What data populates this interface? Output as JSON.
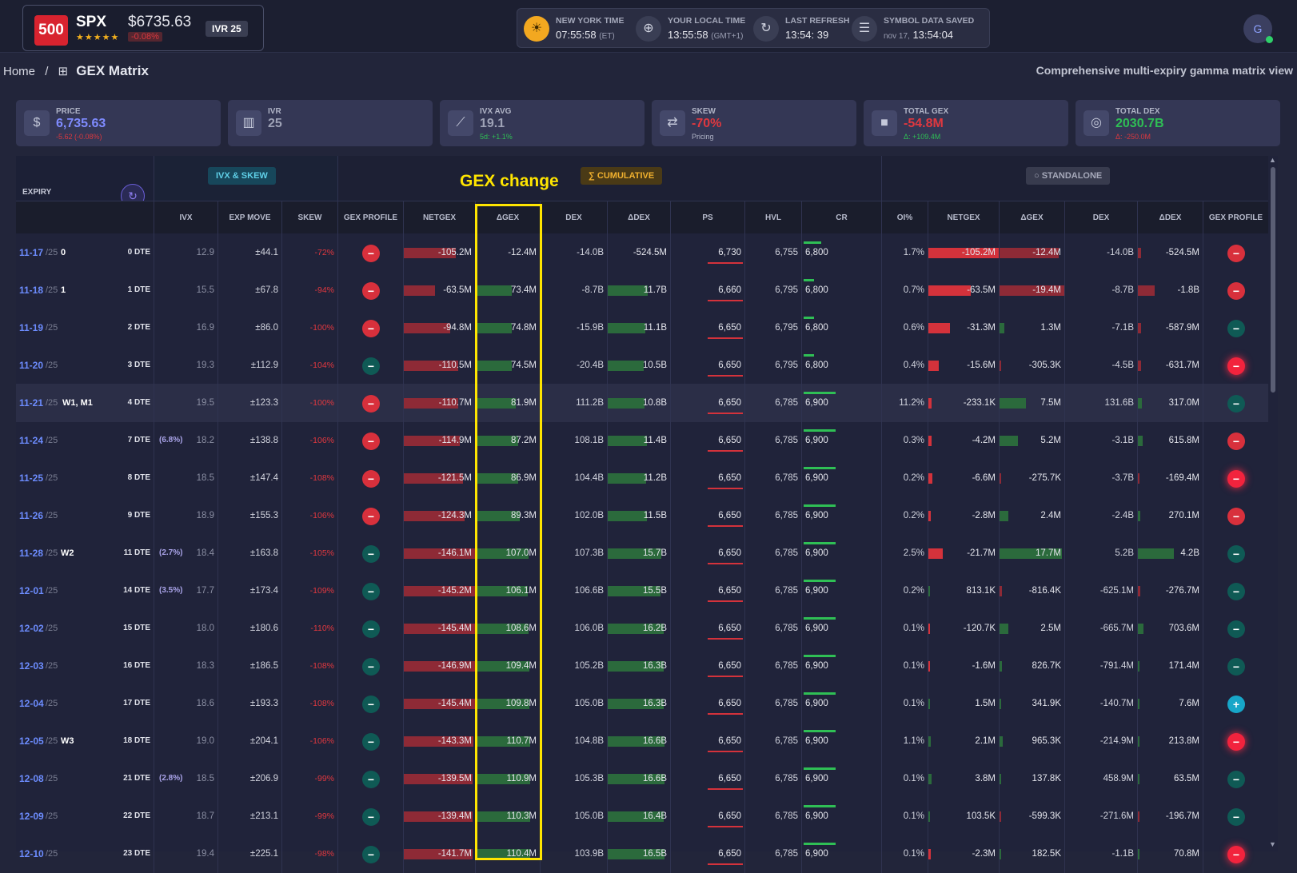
{
  "ticker": {
    "logo": "500",
    "symbol": "SPX",
    "stars": "★★★★★",
    "price": "$6735.63",
    "change": "-0.08%",
    "ivr_label": "IVR",
    "ivr": "25"
  },
  "clocks": [
    {
      "icon": "sun-icon",
      "glyph": "☀",
      "label": "NEW YORK TIME",
      "value": "07:55:58",
      "suffix": "(ET)"
    },
    {
      "icon": "globe-icon",
      "glyph": "⊕",
      "label": "YOUR LOCAL TIME",
      "value": "13:55:58",
      "suffix": "(GMT+1)"
    },
    {
      "icon": "refresh-icon",
      "glyph": "↻",
      "label": "LAST REFRESH",
      "value": "13:54:  39",
      "suffix": ""
    },
    {
      "icon": "database-icon",
      "glyph": "☰",
      "label": "SYMBOL DATA SAVED",
      "value": "13:54:04",
      "suffix": "nov 17,"
    }
  ],
  "avatar": "G",
  "breadcrumb": {
    "home": "Home",
    "sep": "/",
    "icon": "⊞",
    "page": "GEX Matrix"
  },
  "subtitle": "Comprehensive multi-expiry gamma matrix view",
  "kpis": [
    {
      "name": "price",
      "icon": "dollar-icon",
      "glyph": "$",
      "label": "PRICE",
      "value": "6,735.63",
      "sub": "-5.62 (-0.08%)",
      "color": "#7f8bff",
      "subcolor": "#d8383f"
    },
    {
      "name": "ivr",
      "icon": "bar-chart-icon",
      "glyph": "▥",
      "label": "IVR",
      "value": "25",
      "sub": "",
      "color": "#9ea2b6",
      "subcolor": "#9ea2b6"
    },
    {
      "name": "ivx-avg",
      "icon": "line-chart-icon",
      "glyph": "⟋",
      "label": "IVX AVG",
      "value": "19.1",
      "sub": "5d: +1.1%",
      "color": "#9ea2b6",
      "subcolor": "#2fbf55"
    },
    {
      "name": "skew",
      "icon": "swap-icon",
      "glyph": "⇄",
      "label": "SKEW",
      "value": "-70%",
      "sub": "Pricing",
      "color": "#e0383f",
      "subcolor": "#b0b4c6"
    },
    {
      "name": "total-gex",
      "icon": "square-icon",
      "glyph": "■",
      "label": "TOTAL GEX",
      "value": "-54.8M",
      "sub": "Δ: +109.4M",
      "color": "#e0383f",
      "subcolor": "#2fbf55"
    },
    {
      "name": "total-dex",
      "icon": "target-icon",
      "glyph": "◎",
      "label": "TOTAL DEX",
      "value": "2030.7B",
      "sub": "Δ: -250.0M",
      "color": "#2fbf55",
      "subcolor": "#d8383f"
    }
  ],
  "matrix": {
    "expiry_header": "EXPIRY",
    "ivx_group": "IVX & SKEW",
    "cumulative": "∑ CUMULATIVE",
    "standalone": "○ STANDALONE",
    "gex_change_label": "GEX change",
    "columns": [
      "IVX",
      "EXP MOVE",
      "SKEW",
      "GEX PROFILE",
      "NETGEX",
      "ΔGEX",
      "DEX",
      "ΔDEX",
      "PS",
      "HVL",
      "CR",
      "OI%",
      "NETGEX",
      "ΔGEX",
      "DEX",
      "ΔDEX",
      "GEX PROFILE"
    ],
    "rows": [
      {
        "date": "11-17",
        "yr": "/25",
        "tag": "0",
        "dte": "0 DTE",
        "wk": "",
        "ivx": "12.9",
        "move": "±44.1",
        "skew": "-72%",
        "gp": "neg",
        "netgex": "-105.2M",
        "ng": 0.72,
        "dgex": "-12.4M",
        "dg": 0,
        "dex": "-14.0B",
        "ddex": "-524.5M",
        "dd": 0,
        "ps": "6,730",
        "hvl": "6,755",
        "cr": "6,800",
        "crb": 0.5,
        "oi": "1.7%",
        "sng": "-105.2M",
        "sngb": 1.0,
        "sdg": "-12.4M",
        "sdgb": -0.9,
        "sdex": "-14.0B",
        "sdd": "-524.5M",
        "sddb": -0.05,
        "sgp": "neg"
      },
      {
        "date": "11-18",
        "yr": "/25",
        "tag": "1",
        "dte": "1 DTE",
        "wk": "",
        "ivx": "15.5",
        "move": "±67.8",
        "skew": "-94%",
        "gp": "neg",
        "netgex": "-63.5M",
        "ng": 0.43,
        "dgex": "73.4M",
        "dg": 0.55,
        "dex": "-8.7B",
        "ddex": "11.7B",
        "dd": 0.63,
        "ps": "6,660",
        "hvl": "6,795",
        "cr": "6,800",
        "crb": 0.3,
        "oi": "0.7%",
        "sng": "-63.5M",
        "sngb": 0.6,
        "sdg": "-19.4M",
        "sdgb": -1.0,
        "sdex": "-8.7B",
        "sdd": "-1.8B",
        "sddb": -0.25,
        "sgp": "neg"
      },
      {
        "date": "11-19",
        "yr": "/25",
        "tag": "",
        "dte": "2 DTE",
        "wk": "",
        "ivx": "16.9",
        "move": "±86.0",
        "skew": "-100%",
        "gp": "neg",
        "netgex": "-94.8M",
        "ng": 0.64,
        "dgex": "74.8M",
        "dg": 0.56,
        "dex": "-15.9B",
        "ddex": "11.1B",
        "dd": 0.6,
        "ps": "6,650",
        "hvl": "6,795",
        "cr": "6,800",
        "crb": 0.3,
        "oi": "0.6%",
        "sng": "-31.3M",
        "sngb": 0.3,
        "sdg": "1.3M",
        "sdgb": 0.07,
        "sdex": "-7.1B",
        "sdd": "-587.9M",
        "sddb": -0.05,
        "sgp": "pos"
      },
      {
        "date": "11-20",
        "yr": "/25",
        "tag": "",
        "dte": "3 DTE",
        "wk": "",
        "ivx": "19.3",
        "move": "±112.9",
        "skew": "-104%",
        "gp": "pos",
        "netgex": "-110.5M",
        "ng": 0.75,
        "dgex": "74.5M",
        "dg": 0.56,
        "dex": "-20.4B",
        "ddex": "10.5B",
        "dd": 0.57,
        "ps": "6,650",
        "hvl": "6,795",
        "cr": "6,800",
        "crb": 0.3,
        "oi": "0.4%",
        "sng": "-15.6M",
        "sngb": 0.15,
        "sdg": "-305.3K",
        "sdgb": -0.02,
        "sdex": "-4.5B",
        "sdd": "-631.7M",
        "sddb": -0.05,
        "sgp": "neg-glow"
      },
      {
        "date": "11-21",
        "yr": "/25",
        "tag": "W1, M1",
        "dte": "4 DTE",
        "wk": "",
        "ivx": "19.5",
        "move": "±123.3",
        "skew": "-100%",
        "gp": "neg",
        "netgex": "-110.7M",
        "ng": 0.75,
        "dgex": "81.9M",
        "dg": 0.62,
        "dex": "111.2B",
        "ddex": "10.8B",
        "dd": 0.58,
        "ps": "6,650",
        "hvl": "6,785",
        "cr": "6,900",
        "crb": 0.9,
        "oi": "11.2%",
        "sng": "-233.1K",
        "sngb": 0.05,
        "sdg": "7.5M",
        "sdgb": 0.4,
        "sdex": "131.6B",
        "sdd": "317.0M",
        "sddb": 0.06,
        "sgp": "pos",
        "hl": true
      },
      {
        "date": "11-24",
        "yr": "/25",
        "tag": "",
        "dte": "7 DTE",
        "wk": "(6.8%)",
        "ivx": "18.2",
        "move": "±138.8",
        "skew": "-106%",
        "gp": "neg",
        "netgex": "-114.9M",
        "ng": 0.78,
        "dgex": "87.2M",
        "dg": 0.66,
        "dex": "108.1B",
        "ddex": "11.4B",
        "dd": 0.62,
        "ps": "6,650",
        "hvl": "6,785",
        "cr": "6,900",
        "crb": 0.9,
        "oi": "0.3%",
        "sng": "-4.2M",
        "sngb": 0.04,
        "sdg": "5.2M",
        "sdgb": 0.28,
        "sdex": "-3.1B",
        "sdd": "615.8M",
        "sddb": 0.07,
        "sgp": "neg"
      },
      {
        "date": "11-25",
        "yr": "/25",
        "tag": "",
        "dte": "8 DTE",
        "wk": "",
        "ivx": "18.5",
        "move": "±147.4",
        "skew": "-108%",
        "gp": "neg",
        "netgex": "-121.5M",
        "ng": 0.82,
        "dgex": "86.9M",
        "dg": 0.66,
        "dex": "104.4B",
        "ddex": "11.2B",
        "dd": 0.61,
        "ps": "6,650",
        "hvl": "6,785",
        "cr": "6,900",
        "crb": 0.9,
        "oi": "0.2%",
        "sng": "-6.6M",
        "sngb": 0.06,
        "sdg": "-275.7K",
        "sdgb": -0.02,
        "sdex": "-3.7B",
        "sdd": "-169.4M",
        "sddb": -0.03,
        "sgp": "neg-glow"
      },
      {
        "date": "11-26",
        "yr": "/25",
        "tag": "",
        "dte": "9 DTE",
        "wk": "",
        "ivx": "18.9",
        "move": "±155.3",
        "skew": "-106%",
        "gp": "neg",
        "netgex": "-124.3M",
        "ng": 0.84,
        "dgex": "89.3M",
        "dg": 0.68,
        "dex": "102.0B",
        "ddex": "11.5B",
        "dd": 0.62,
        "ps": "6,650",
        "hvl": "6,785",
        "cr": "6,900",
        "crb": 0.9,
        "oi": "0.2%",
        "sng": "-2.8M",
        "sngb": 0.03,
        "sdg": "2.4M",
        "sdgb": 0.13,
        "sdex": "-2.4B",
        "sdd": "270.1M",
        "sddb": 0.04,
        "sgp": "neg"
      },
      {
        "date": "11-28",
        "yr": "/25",
        "tag": "W2",
        "dte": "11 DTE",
        "wk": "(2.7%)",
        "ivx": "18.4",
        "move": "±163.8",
        "skew": "-105%",
        "gp": "pos",
        "netgex": "-146.1M",
        "ng": 0.99,
        "dgex": "107.0M",
        "dg": 0.81,
        "dex": "107.3B",
        "ddex": "15.7B",
        "dd": 0.85,
        "ps": "6,650",
        "hvl": "6,785",
        "cr": "6,900",
        "crb": 0.9,
        "oi": "2.5%",
        "sng": "-21.7M",
        "sngb": 0.2,
        "sdg": "17.7M",
        "sdgb": 0.95,
        "sdex": "5.2B",
        "sdd": "4.2B",
        "sddb": 0.55,
        "sgp": "pos"
      },
      {
        "date": "12-01",
        "yr": "/25",
        "tag": "",
        "dte": "14 DTE",
        "wk": "(3.5%)",
        "ivx": "17.7",
        "move": "±173.4",
        "skew": "-109%",
        "gp": "pos",
        "netgex": "-145.2M",
        "ng": 0.99,
        "dgex": "106.1M",
        "dg": 0.8,
        "dex": "106.6B",
        "ddex": "15.5B",
        "dd": 0.84,
        "ps": "6,650",
        "hvl": "6,785",
        "cr": "6,900",
        "crb": 0.9,
        "oi": "0.2%",
        "sng": "813.1K",
        "sngb": 0.02,
        "sdg": "-816.4K",
        "sdgb": -0.04,
        "sdex": "-625.1M",
        "sdd": "-276.7M",
        "sddb": -0.04,
        "sgp": "pos"
      },
      {
        "date": "12-02",
        "yr": "/25",
        "tag": "",
        "dte": "15 DTE",
        "wk": "",
        "ivx": "18.0",
        "move": "±180.6",
        "skew": "-110%",
        "gp": "pos",
        "netgex": "-145.4M",
        "ng": 0.99,
        "dgex": "108.6M",
        "dg": 0.82,
        "dex": "106.0B",
        "ddex": "16.2B",
        "dd": 0.88,
        "ps": "6,650",
        "hvl": "6,785",
        "cr": "6,900",
        "crb": 0.9,
        "oi": "0.1%",
        "sng": "-120.7K",
        "sngb": 0.02,
        "sdg": "2.5M",
        "sdgb": 0.13,
        "sdex": "-665.7M",
        "sdd": "703.6M",
        "sddb": 0.08,
        "sgp": "pos"
      },
      {
        "date": "12-03",
        "yr": "/25",
        "tag": "",
        "dte": "16 DTE",
        "wk": "",
        "ivx": "18.3",
        "move": "±186.5",
        "skew": "-108%",
        "gp": "pos",
        "netgex": "-146.9M",
        "ng": 1.0,
        "dgex": "109.4M",
        "dg": 0.83,
        "dex": "105.2B",
        "ddex": "16.3B",
        "dd": 0.88,
        "ps": "6,650",
        "hvl": "6,785",
        "cr": "6,900",
        "crb": 0.9,
        "oi": "0.1%",
        "sng": "-1.6M",
        "sngb": 0.02,
        "sdg": "826.7K",
        "sdgb": 0.04,
        "sdex": "-791.4M",
        "sdd": "171.4M",
        "sddb": 0.03,
        "sgp": "pos"
      },
      {
        "date": "12-04",
        "yr": "/25",
        "tag": "",
        "dte": "17 DTE",
        "wk": "",
        "ivx": "18.6",
        "move": "±193.3",
        "skew": "-108%",
        "gp": "pos",
        "netgex": "-145.4M",
        "ng": 0.99,
        "dgex": "109.8M",
        "dg": 0.83,
        "dex": "105.0B",
        "ddex": "16.3B",
        "dd": 0.88,
        "ps": "6,650",
        "hvl": "6,785",
        "cr": "6,900",
        "crb": 0.9,
        "oi": "0.1%",
        "sng": "1.5M",
        "sngb": 0.02,
        "sdg": "341.9K",
        "sdgb": 0.02,
        "sdex": "-140.7M",
        "sdd": "7.6M",
        "sddb": 0.02,
        "sgp": "plus"
      },
      {
        "date": "12-05",
        "yr": "/25",
        "tag": "W3",
        "dte": "18 DTE",
        "wk": "",
        "ivx": "19.0",
        "move": "±204.1",
        "skew": "-106%",
        "gp": "pos",
        "netgex": "-143.3M",
        "ng": 0.97,
        "dgex": "110.7M",
        "dg": 0.84,
        "dex": "104.8B",
        "ddex": "16.6B",
        "dd": 0.9,
        "ps": "6,650",
        "hvl": "6,785",
        "cr": "6,900",
        "crb": 0.9,
        "oi": "1.1%",
        "sng": "2.1M",
        "sngb": 0.03,
        "sdg": "965.3K",
        "sdgb": 0.05,
        "sdex": "-214.9M",
        "sdd": "213.8M",
        "sddb": 0.03,
        "sgp": "neg-glow"
      },
      {
        "date": "12-08",
        "yr": "/25",
        "tag": "",
        "dte": "21 DTE",
        "wk": "(2.8%)",
        "ivx": "18.5",
        "move": "±206.9",
        "skew": "-99%",
        "gp": "pos",
        "netgex": "-139.5M",
        "ng": 0.95,
        "dgex": "110.9M",
        "dg": 0.84,
        "dex": "105.3B",
        "ddex": "16.6B",
        "dd": 0.9,
        "ps": "6,650",
        "hvl": "6,785",
        "cr": "6,900",
        "crb": 0.9,
        "oi": "0.1%",
        "sng": "3.8M",
        "sngb": 0.04,
        "sdg": "137.8K",
        "sdgb": 0.02,
        "sdex": "458.9M",
        "sdd": "63.5M",
        "sddb": 0.02,
        "sgp": "pos"
      },
      {
        "date": "12-09",
        "yr": "/25",
        "tag": "",
        "dte": "22 DTE",
        "wk": "",
        "ivx": "18.7",
        "move": "±213.1",
        "skew": "-99%",
        "gp": "pos",
        "netgex": "-139.4M",
        "ng": 0.95,
        "dgex": "110.3M",
        "dg": 0.84,
        "dex": "105.0B",
        "ddex": "16.4B",
        "dd": 0.89,
        "ps": "6,650",
        "hvl": "6,785",
        "cr": "6,900",
        "crb": 0.9,
        "oi": "0.1%",
        "sng": "103.5K",
        "sngb": 0.02,
        "sdg": "-599.3K",
        "sdgb": -0.03,
        "sdex": "-271.6M",
        "sdd": "-196.7M",
        "sddb": -0.03,
        "sgp": "pos"
      },
      {
        "date": "12-10",
        "yr": "/25",
        "tag": "",
        "dte": "23 DTE",
        "wk": "",
        "ivx": "19.4",
        "move": "±225.1",
        "skew": "-98%",
        "gp": "pos",
        "netgex": "-141.7M",
        "ng": 0.96,
        "dgex": "110.4M",
        "dg": 0.84,
        "dex": "103.9B",
        "ddex": "16.5B",
        "dd": 0.9,
        "ps": "6,650",
        "hvl": "6,785",
        "cr": "6,900",
        "crb": 0.9,
        "oi": "0.1%",
        "sng": "-2.3M",
        "sngb": 0.03,
        "sdg": "182.5K",
        "sdgb": 0.02,
        "sdex": "-1.1B",
        "sdd": "70.8M",
        "sddb": 0.02,
        "sgp": "neg-glow"
      }
    ]
  },
  "colors": {
    "red": "#e0383f",
    "green": "#2f8f45",
    "teal": "#0f5a55",
    "accent": "#7f8bff",
    "highlight": "#ffe500"
  }
}
